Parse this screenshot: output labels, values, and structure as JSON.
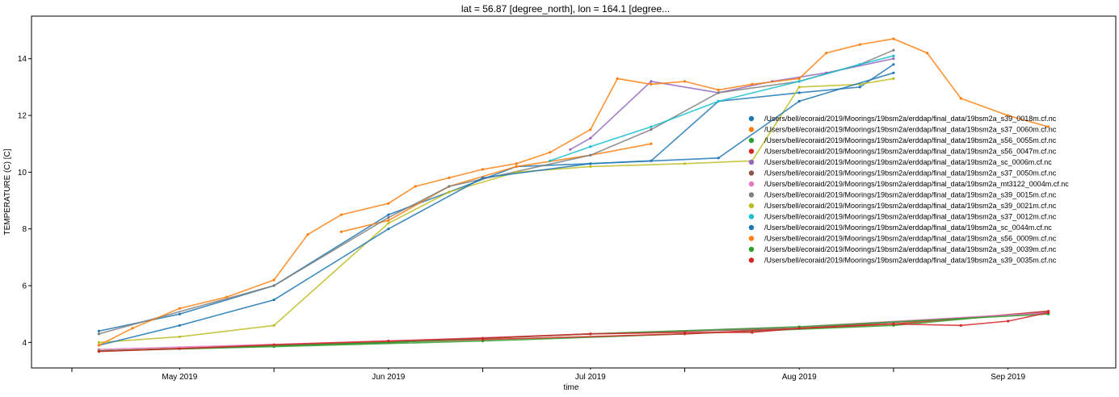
{
  "chart_data": {
    "type": "scatter",
    "title": "lat = 56.87 [degree_north], lon = 164.1 [degree...",
    "xlabel": "time",
    "ylabel": "TEMPERATURE (C) [C]",
    "xlim": [
      "2019-04-09",
      "2019-09-17"
    ],
    "ylim": [
      3.1,
      15.5
    ],
    "yticks": [
      4,
      6,
      8,
      10,
      12,
      14
    ],
    "xticks": [
      {
        "date": "2019-05-01",
        "label": "May 2019"
      },
      {
        "date": "2019-06-01",
        "label": "Jun 2019"
      },
      {
        "date": "2019-07-01",
        "label": "Jul 2019"
      },
      {
        "date": "2019-08-01",
        "label": "Aug 2019"
      },
      {
        "date": "2019-09-01",
        "label": "Sep 2019"
      }
    ],
    "minor_xticks": [
      "2019-04-15",
      "2019-05-15",
      "2019-06-15",
      "2019-07-15",
      "2019-08-15"
    ],
    "grid": false,
    "legend_position": "right",
    "series": [
      {
        "name": "/Users/bell/ecoraid/2019/Moorings/19bsm2a/erddap/final_data/19bsm2a_s39_0018m.cf.nc",
        "color": "#1f77b4",
        "x": [
          "2019-04-19",
          "2019-05-01",
          "2019-05-15",
          "2019-06-01",
          "2019-06-10",
          "2019-06-20",
          "2019-07-01",
          "2019-07-10",
          "2019-07-20",
          "2019-08-01",
          "2019-08-10",
          "2019-08-15"
        ],
        "y": [
          4.4,
          5.0,
          6.0,
          8.5,
          9.3,
          10.2,
          10.3,
          10.4,
          12.5,
          12.8,
          13.0,
          13.8
        ]
      },
      {
        "name": "/Users/bell/ecoraid/2019/Moorings/19bsm2a/erddap/final_data/19bsm2a_s37_0060m.cf.nc",
        "color": "#ff7f0e",
        "x": [
          "2019-05-25",
          "2019-06-01",
          "2019-06-10",
          "2019-06-20",
          "2019-07-01",
          "2019-07-10"
        ],
        "y": [
          7.9,
          8.3,
          9.5,
          10.2,
          10.6,
          11.0
        ]
      },
      {
        "name": "/Users/bell/ecoraid/2019/Moorings/19bsm2a/erddap/final_data/19bsm2a_s56_0055m.cf.nc",
        "color": "#2ca02c",
        "x": [
          "2019-04-19",
          "2019-05-15",
          "2019-06-15",
          "2019-07-15",
          "2019-08-15",
          "2019-09-07"
        ],
        "y": [
          3.7,
          3.85,
          4.05,
          4.3,
          4.6,
          5.1
        ]
      },
      {
        "name": "/Users/bell/ecoraid/2019/Moorings/19bsm2a/erddap/final_data/19bsm2a_s56_0047m.cf.nc",
        "color": "#d62728",
        "x": [
          "2019-04-19",
          "2019-05-15",
          "2019-06-15",
          "2019-07-15",
          "2019-08-15",
          "2019-09-07"
        ],
        "y": [
          3.7,
          3.9,
          4.1,
          4.3,
          4.65,
          5.1
        ]
      },
      {
        "name": "/Users/bell/ecoraid/2019/Moorings/19bsm2a/erddap/final_data/19bsm2a_sc_0006m.cf.nc",
        "color": "#9467bd",
        "x": [
          "2019-06-28",
          "2019-07-01",
          "2019-07-10",
          "2019-07-20",
          "2019-07-28",
          "2019-08-05",
          "2019-08-15"
        ],
        "y": [
          10.8,
          11.2,
          13.2,
          12.8,
          13.2,
          13.5,
          14.0
        ]
      },
      {
        "name": "/Users/bell/ecoraid/2019/Moorings/19bsm2a/erddap/final_data/19bsm2a_s37_0050m.cf.nc",
        "color": "#8c564b",
        "x": [
          "2019-04-19",
          "2019-06-01",
          "2019-07-01",
          "2019-08-01",
          "2019-09-07"
        ],
        "y": [
          3.7,
          4.0,
          4.3,
          4.5,
          5.05
        ]
      },
      {
        "name": "/Users/bell/ecoraid/2019/Moorings/19bsm2a/erddap/final_data/19bsm2a_mt3122_0004m.cf.nc",
        "color": "#e377c2",
        "x": [
          "2019-04-19",
          "2019-06-01",
          "2019-07-01",
          "2019-08-01",
          "2019-09-07"
        ],
        "y": [
          3.75,
          4.05,
          4.3,
          4.55,
          5.05
        ]
      },
      {
        "name": "/Users/bell/ecoraid/2019/Moorings/19bsm2a/erddap/final_data/19bsm2a_s39_0015m.cf.nc",
        "color": "#7f7f7f",
        "x": [
          "2019-04-19",
          "2019-05-15",
          "2019-06-01",
          "2019-06-10",
          "2019-07-01",
          "2019-07-10",
          "2019-07-20",
          "2019-08-01",
          "2019-08-10",
          "2019-08-15"
        ],
        "y": [
          4.3,
          6.0,
          8.4,
          9.5,
          10.6,
          11.5,
          12.8,
          13.2,
          13.8,
          14.3
        ]
      },
      {
        "name": "/Users/bell/ecoraid/2019/Moorings/19bsm2a/erddap/final_data/19bsm2a_s39_0021m.cf.nc",
        "color": "#bcbd22",
        "x": [
          "2019-04-19",
          "2019-05-01",
          "2019-05-15",
          "2019-06-01",
          "2019-06-10",
          "2019-06-20",
          "2019-07-01",
          "2019-07-15",
          "2019-07-25",
          "2019-08-01",
          "2019-08-10",
          "2019-08-15"
        ],
        "y": [
          4.0,
          4.2,
          4.6,
          8.2,
          9.3,
          10.0,
          10.2,
          10.3,
          10.4,
          13.0,
          13.1,
          13.3
        ]
      },
      {
        "name": "/Users/bell/ecoraid/2019/Moorings/19bsm2a/erddap/final_data/19bsm2a_s37_0012m.cf.nc",
        "color": "#17becf",
        "x": [
          "2019-06-25",
          "2019-07-01",
          "2019-07-10",
          "2019-07-20",
          "2019-08-01",
          "2019-08-10",
          "2019-08-15"
        ],
        "y": [
          10.4,
          10.9,
          11.6,
          12.5,
          13.2,
          13.8,
          14.1
        ]
      },
      {
        "name": "/Users/bell/ecoraid/2019/Moorings/19bsm2a/erddap/final_data/19bsm2a_sc_0044m.cf.nc",
        "color": "#1f77b4",
        "x": [
          "2019-04-19",
          "2019-05-01",
          "2019-05-15",
          "2019-06-01",
          "2019-06-15",
          "2019-07-01",
          "2019-07-20",
          "2019-08-01",
          "2019-08-15"
        ],
        "y": [
          3.9,
          4.6,
          5.5,
          8.0,
          9.8,
          10.3,
          10.5,
          12.5,
          13.5
        ]
      },
      {
        "name": "/Users/bell/ecoraid/2019/Moorings/19bsm2a/erddap/final_data/19bsm2a_s56_0009m.cf.nc",
        "color": "#ff7f0e",
        "x": [
          "2019-04-19",
          "2019-04-24",
          "2019-05-01",
          "2019-05-08",
          "2019-05-15",
          "2019-05-20",
          "2019-05-25",
          "2019-06-01",
          "2019-06-05",
          "2019-06-10",
          "2019-06-15",
          "2019-06-20",
          "2019-06-25",
          "2019-07-01",
          "2019-07-05",
          "2019-07-10",
          "2019-07-15",
          "2019-07-20",
          "2019-07-25",
          "2019-08-01",
          "2019-08-05",
          "2019-08-10",
          "2019-08-15",
          "2019-08-20",
          "2019-08-25",
          "2019-09-01",
          "2019-09-07"
        ],
        "y": [
          3.9,
          4.5,
          5.2,
          5.6,
          6.2,
          7.8,
          8.5,
          8.9,
          9.5,
          9.8,
          10.1,
          10.3,
          10.7,
          11.5,
          13.3,
          13.1,
          13.2,
          12.9,
          13.1,
          13.3,
          14.2,
          14.5,
          14.7,
          14.2,
          12.6,
          12.0,
          11.6
        ]
      },
      {
        "name": "/Users/bell/ecoraid/2019/Moorings/19bsm2a/erddap/final_data/19bsm2a_s39_0039m.cf.nc",
        "color": "#2ca02c",
        "x": [
          "2019-04-19",
          "2019-06-01",
          "2019-07-01",
          "2019-08-01",
          "2019-09-07"
        ],
        "y": [
          3.7,
          4.0,
          4.3,
          4.55,
          5.0
        ]
      },
      {
        "name": "/Users/bell/ecoraid/2019/Moorings/19bsm2a/erddap/final_data/19bsm2a_s39_0035m.cf.nc",
        "color": "#d62728",
        "x": [
          "2019-04-19",
          "2019-05-01",
          "2019-05-15",
          "2019-06-01",
          "2019-06-15",
          "2019-07-01",
          "2019-07-15",
          "2019-07-25",
          "2019-08-01",
          "2019-08-15",
          "2019-08-25",
          "2019-09-01",
          "2019-09-07"
        ],
        "y": [
          3.68,
          3.78,
          3.92,
          4.05,
          4.15,
          4.3,
          4.35,
          4.35,
          4.5,
          4.65,
          4.6,
          4.75,
          5.05
        ]
      }
    ]
  }
}
